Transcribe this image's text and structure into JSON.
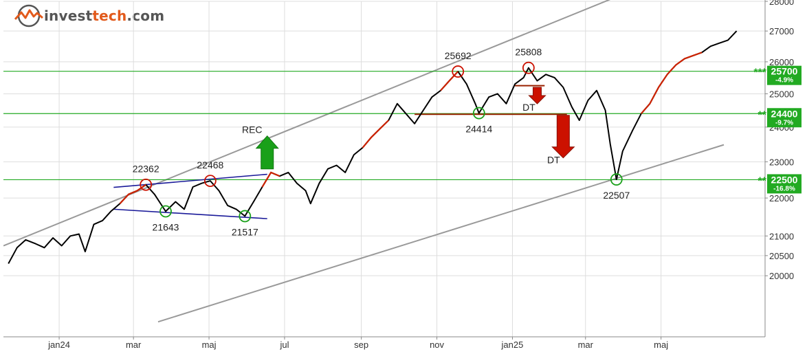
{
  "logo": {
    "part1": "invest",
    "part2": "tech",
    "part3": ".com",
    "icon": "investtech-logo-icon"
  },
  "colors": {
    "price_line": "#000000",
    "highlight_line": "#cc2200",
    "support_resistance": "#22aa22",
    "trend_channel": "#999999",
    "pattern_lines": "#1a1a99",
    "signal_up": "#1aa01a",
    "signal_down": "#cc1100",
    "box_fill": "#22aa22"
  },
  "chart_data": {
    "type": "line",
    "title": "",
    "xlabel": "",
    "ylabel": "",
    "scale": "log",
    "ylim": [
      19000,
      28000
    ],
    "grid": true,
    "x_tick_labels": [
      "jan24",
      "mar",
      "maj",
      "jul",
      "sep",
      "nov",
      "jan25",
      "mar",
      "maj"
    ],
    "y_tick_labels": [
      "28000",
      "27000",
      "26000",
      "25000",
      "24000",
      "23000",
      "22000",
      "21000",
      "20500",
      "20000"
    ],
    "series": [
      {
        "points": [
          [
            "2023-12-05",
            20300
          ],
          [
            "2023-12-12",
            20700
          ],
          [
            "2023-12-19",
            20900
          ],
          [
            "2023-12-27",
            20800
          ],
          [
            "2024-01-03",
            20700
          ],
          [
            "2024-01-10",
            20950
          ],
          [
            "2024-01-17",
            20750
          ],
          [
            "2024-01-24",
            21000
          ],
          [
            "2024-01-31",
            21050
          ],
          [
            "2024-02-05",
            20600
          ],
          [
            "2024-02-12",
            21300
          ],
          [
            "2024-02-19",
            21400
          ],
          [
            "2024-02-26",
            21650
          ],
          [
            "2024-03-04",
            21850
          ],
          [
            "2024-03-11",
            22100
          ],
          [
            "2024-03-18",
            22200
          ],
          [
            "2024-03-25",
            22362
          ],
          [
            "2024-04-01",
            22100
          ],
          [
            "2024-04-10",
            21643
          ],
          [
            "2024-04-18",
            21900
          ],
          [
            "2024-04-25",
            21700
          ],
          [
            "2024-05-02",
            22300
          ],
          [
            "2024-05-09",
            22400
          ],
          [
            "2024-05-16",
            22468
          ],
          [
            "2024-05-23",
            22200
          ],
          [
            "2024-05-30",
            21800
          ],
          [
            "2024-06-06",
            21700
          ],
          [
            "2024-06-13",
            21517
          ],
          [
            "2024-06-20",
            21900
          ],
          [
            "2024-06-27",
            22300
          ],
          [
            "2024-07-04",
            22700
          ],
          [
            "2024-07-11",
            22600
          ],
          [
            "2024-07-18",
            22700
          ],
          [
            "2024-07-25",
            22400
          ],
          [
            "2024-08-01",
            22200
          ],
          [
            "2024-08-05",
            21850
          ],
          [
            "2024-08-12",
            22400
          ],
          [
            "2024-08-19",
            22800
          ],
          [
            "2024-08-26",
            22900
          ],
          [
            "2024-09-02",
            22700
          ],
          [
            "2024-09-09",
            23200
          ],
          [
            "2024-09-16",
            23400
          ],
          [
            "2024-09-23",
            23700
          ],
          [
            "2024-09-30",
            23950
          ],
          [
            "2024-10-07",
            24200
          ],
          [
            "2024-10-14",
            24700
          ],
          [
            "2024-10-21",
            24400
          ],
          [
            "2024-10-28",
            24100
          ],
          [
            "2024-11-04",
            24500
          ],
          [
            "2024-11-11",
            24900
          ],
          [
            "2024-11-18",
            25100
          ],
          [
            "2024-11-25",
            25400
          ],
          [
            "2024-12-02",
            25692
          ],
          [
            "2024-12-09",
            25300
          ],
          [
            "2024-12-16",
            24700
          ],
          [
            "2024-12-19",
            24414
          ],
          [
            "2024-12-27",
            24900
          ],
          [
            "2025-01-03",
            25000
          ],
          [
            "2025-01-10",
            24700
          ],
          [
            "2025-01-17",
            25300
          ],
          [
            "2025-01-24",
            25500
          ],
          [
            "2025-01-28",
            25808
          ],
          [
            "2025-02-04",
            25400
          ],
          [
            "2025-02-11",
            25600
          ],
          [
            "2025-02-18",
            25500
          ],
          [
            "2025-02-25",
            25200
          ],
          [
            "2025-03-04",
            24600
          ],
          [
            "2025-03-10",
            24200
          ],
          [
            "2025-03-17",
            24800
          ],
          [
            "2025-03-24",
            25100
          ],
          [
            "2025-03-31",
            24500
          ],
          [
            "2025-04-04",
            23500
          ],
          [
            "2025-04-09",
            22507
          ],
          [
            "2025-04-14",
            23300
          ],
          [
            "2025-04-22",
            23900
          ],
          [
            "2025-04-29",
            24400
          ],
          [
            "2025-05-06",
            24700
          ],
          [
            "2025-05-13",
            25200
          ],
          [
            "2025-05-20",
            25600
          ],
          [
            "2025-05-27",
            25900
          ],
          [
            "2025-06-03",
            26100
          ],
          [
            "2025-06-10",
            26200
          ],
          [
            "2025-06-17",
            26300
          ],
          [
            "2025-06-24",
            26500
          ],
          [
            "2025-07-01",
            26600
          ],
          [
            "2025-07-08",
            26700
          ],
          [
            "2025-07-15",
            27000
          ]
        ]
      }
    ],
    "horizontal_lines": [
      {
        "value": 25700,
        "label": "25700",
        "pct": "-4.9%",
        "stars": "***"
      },
      {
        "value": 24400,
        "label": "24400",
        "pct": "-9.7%",
        "stars": "**"
      },
      {
        "value": 22500,
        "label": "22500",
        "pct": "-16.8%",
        "stars": "**"
      }
    ],
    "trend_channel": {
      "upper": [
        [
          "2023-12-05",
          20800
        ],
        [
          "2025-03-31",
          28000
        ]
      ],
      "lower": [
        [
          "2024-03-18",
          18750
        ],
        [
          "2025-07-15",
          23600
        ]
      ]
    },
    "point_annotations": [
      {
        "label": "22362",
        "date": "2024-03-25",
        "value": 22362,
        "kind": "top"
      },
      {
        "label": "22468",
        "date": "2024-05-16",
        "value": 22468,
        "kind": "top"
      },
      {
        "label": "21643",
        "date": "2024-04-10",
        "value": 21643,
        "kind": "bottom"
      },
      {
        "label": "21517",
        "date": "2024-06-13",
        "value": 21517,
        "kind": "bottom"
      },
      {
        "label": "25692",
        "date": "2024-12-02",
        "value": 25692,
        "kind": "top"
      },
      {
        "label": "25808",
        "date": "2025-01-28",
        "value": 25808,
        "kind": "top"
      },
      {
        "label": "24414",
        "date": "2024-12-19",
        "value": 24414,
        "kind": "bottom"
      },
      {
        "label": "22507",
        "date": "2025-04-09",
        "value": 22507,
        "kind": "bottom"
      }
    ],
    "signals": [
      {
        "label": "REC",
        "direction": "up",
        "date": "2024-07-01",
        "value": 22800
      },
      {
        "label": "DT",
        "direction": "down",
        "date": "2025-02-04",
        "value": 25200
      },
      {
        "label": "DT",
        "direction": "down",
        "date": "2025-02-25",
        "value": 24350
      }
    ]
  }
}
